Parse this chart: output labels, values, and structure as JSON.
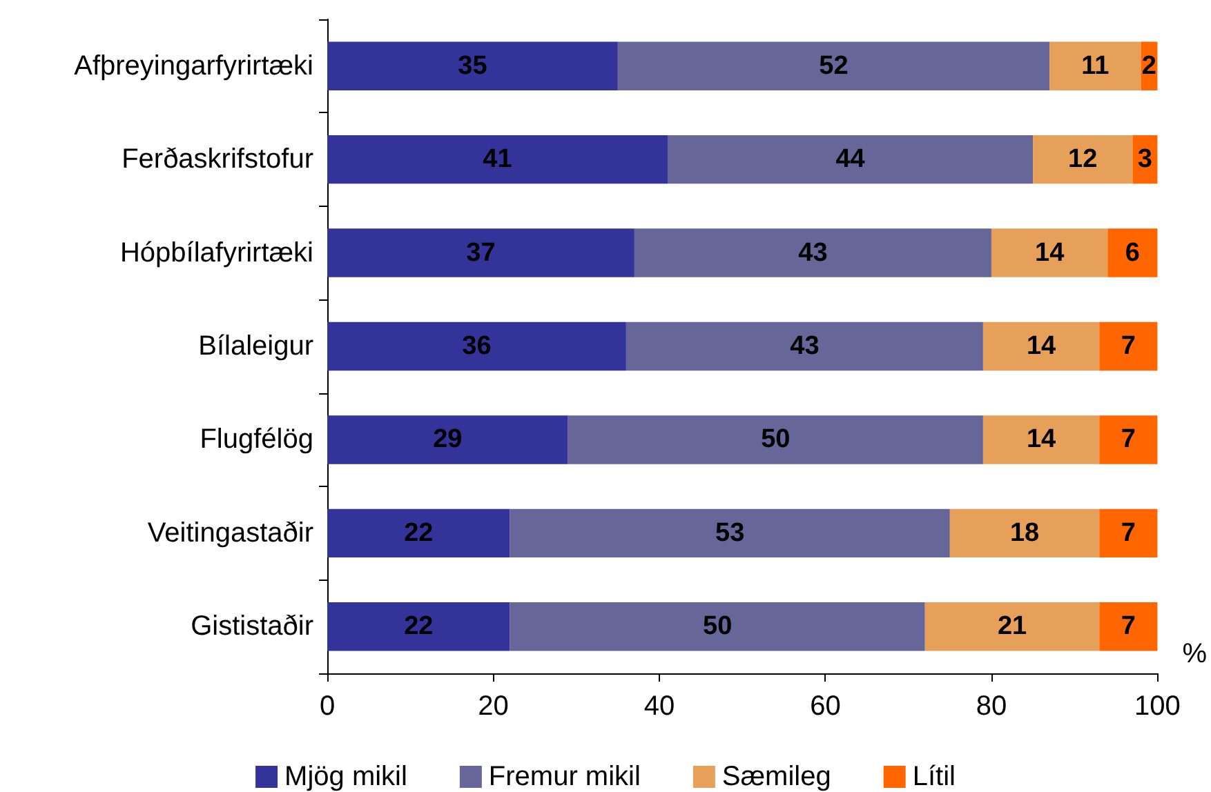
{
  "chart_data": {
    "type": "bar",
    "orientation": "horizontal",
    "stacked": true,
    "xlabel": "%",
    "categories": [
      "Afþreyingarfyrirtæki",
      "Ferðaskrifstofur",
      "Hópbílafyrirtæki",
      "Bílaleigur",
      "Flugfélög",
      "Veitingastaðir",
      "Gististaðir"
    ],
    "series": [
      {
        "name": "Mjög mikil",
        "color": "#333399",
        "values": [
          35,
          41,
          37,
          36,
          29,
          22,
          22
        ]
      },
      {
        "name": "Fremur mikil",
        "color": "#666699",
        "values": [
          52,
          44,
          43,
          43,
          50,
          53,
          50
        ]
      },
      {
        "name": "Sæmileg",
        "color": "#e6a05a",
        "values": [
          11,
          12,
          14,
          14,
          14,
          18,
          21
        ]
      },
      {
        "name": "Lítil",
        "color": "#ff6600",
        "values": [
          2,
          3,
          6,
          7,
          7,
          7,
          7
        ]
      }
    ],
    "xlim": [
      0,
      100
    ],
    "xticks": [
      0,
      20,
      40,
      60,
      80,
      100
    ],
    "grid": false,
    "legend": "bottom",
    "data_labels": true
  }
}
